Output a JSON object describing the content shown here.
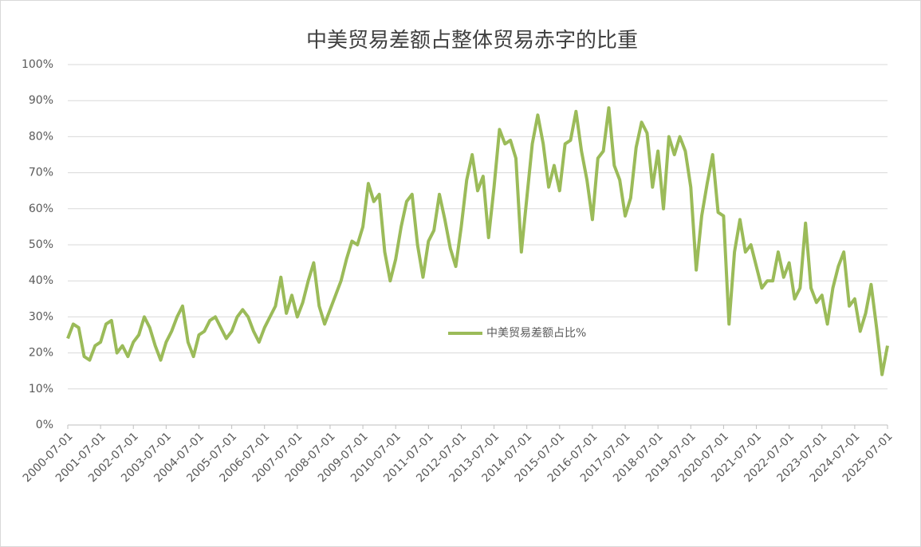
{
  "chart_data": {
    "type": "line",
    "title": "中美贸易差额占整体贸易赤字的比重",
    "x": [
      "2000-07-01",
      "2000-09-01",
      "2000-11-01",
      "2001-01-01",
      "2001-03-01",
      "2001-05-01",
      "2001-07-01",
      "2001-09-01",
      "2001-11-01",
      "2002-01-01",
      "2002-03-01",
      "2002-05-01",
      "2002-07-01",
      "2002-09-01",
      "2002-11-01",
      "2003-01-01",
      "2003-03-01",
      "2003-05-01",
      "2003-07-01",
      "2003-09-01",
      "2003-11-01",
      "2004-01-01",
      "2004-03-01",
      "2004-05-01",
      "2004-07-01",
      "2004-09-01",
      "2004-11-01",
      "2005-01-01",
      "2005-03-01",
      "2005-05-01",
      "2005-07-01",
      "2005-09-01",
      "2005-11-01",
      "2006-01-01",
      "2006-03-01",
      "2006-05-01",
      "2006-07-01",
      "2006-09-01",
      "2006-11-01",
      "2007-01-01",
      "2007-03-01",
      "2007-05-01",
      "2007-07-01",
      "2007-09-01",
      "2007-11-01",
      "2008-01-01",
      "2008-03-01",
      "2008-05-01",
      "2008-07-01",
      "2008-09-01",
      "2008-11-01",
      "2009-01-01",
      "2009-03-01",
      "2009-05-01",
      "2009-07-01",
      "2009-09-01",
      "2009-11-01",
      "2010-01-01",
      "2010-03-01",
      "2010-05-01",
      "2010-07-01",
      "2010-09-01",
      "2010-11-01",
      "2011-01-01",
      "2011-03-01",
      "2011-05-01",
      "2011-07-01",
      "2011-09-01",
      "2011-11-01",
      "2012-01-01",
      "2012-03-01",
      "2012-05-01",
      "2012-07-01",
      "2012-09-01",
      "2012-11-01",
      "2013-01-01",
      "2013-03-01",
      "2013-05-01",
      "2013-07-01",
      "2013-09-01",
      "2013-11-01",
      "2014-01-01",
      "2014-03-01",
      "2014-05-01",
      "2014-07-01",
      "2014-09-01",
      "2014-11-01",
      "2015-01-01",
      "2015-03-01",
      "2015-05-01",
      "2015-07-01",
      "2015-09-01",
      "2015-11-01",
      "2016-01-01",
      "2016-03-01",
      "2016-05-01",
      "2016-07-01",
      "2016-09-01",
      "2016-11-01",
      "2017-01-01",
      "2017-03-01",
      "2017-05-01",
      "2017-07-01",
      "2017-09-01",
      "2017-11-01",
      "2018-01-01",
      "2018-03-01",
      "2018-05-01",
      "2018-07-01",
      "2018-09-01",
      "2018-11-01",
      "2019-01-01",
      "2019-03-01",
      "2019-05-01",
      "2019-07-01",
      "2019-09-01",
      "2019-11-01",
      "2020-01-01",
      "2020-03-01",
      "2020-05-01",
      "2020-07-01",
      "2020-09-01",
      "2020-11-01",
      "2021-01-01",
      "2021-03-01",
      "2021-05-01",
      "2021-07-01",
      "2021-09-01",
      "2021-11-01",
      "2022-01-01",
      "2022-03-01",
      "2022-05-01",
      "2022-07-01",
      "2022-09-01",
      "2022-11-01",
      "2023-01-01",
      "2023-03-01",
      "2023-05-01",
      "2023-07-01",
      "2023-09-01",
      "2023-11-01",
      "2024-01-01",
      "2024-03-01",
      "2024-05-01",
      "2024-07-01",
      "2024-09-01",
      "2024-11-01",
      "2025-01-01",
      "2025-03-01",
      "2025-05-01",
      "2025-07-01"
    ],
    "series": [
      {
        "name": "中美贸易差额占比%",
        "color": "#9bbb59",
        "values": [
          24,
          28,
          27,
          19,
          18,
          22,
          23,
          28,
          29,
          20,
          22,
          19,
          23,
          25,
          30,
          27,
          22,
          18,
          23,
          26,
          30,
          33,
          23,
          19,
          25,
          26,
          29,
          30,
          27,
          24,
          26,
          30,
          32,
          30,
          26,
          23,
          27,
          30,
          33,
          41,
          31,
          36,
          30,
          34,
          40,
          45,
          33,
          28,
          32,
          36,
          40,
          46,
          51,
          50,
          55,
          67,
          62,
          64,
          48,
          40,
          46,
          55,
          62,
          64,
          50,
          41,
          51,
          54,
          64,
          57,
          49,
          44,
          55,
          68,
          75,
          65,
          69,
          52,
          66,
          82,
          78,
          79,
          74,
          48,
          63,
          78,
          86,
          78,
          66,
          72,
          65,
          78,
          79,
          87,
          76,
          68,
          57,
          74,
          76,
          88,
          72,
          68,
          58,
          63,
          77,
          84,
          81,
          66,
          76,
          60,
          80,
          75,
          80,
          76,
          66,
          43,
          58,
          67,
          75,
          59,
          58,
          28,
          48,
          57,
          48,
          50,
          44,
          38,
          40,
          40,
          48,
          41,
          45,
          35,
          38,
          56,
          38,
          34,
          36,
          28,
          38,
          44,
          48,
          33,
          35,
          26,
          31,
          39,
          27,
          14,
          22
        ]
      }
    ],
    "xlim": [
      "2000-07-01",
      "2025-07-01"
    ],
    "xticks": [
      "2000-07-01",
      "2001-07-01",
      "2002-07-01",
      "2003-07-01",
      "2004-07-01",
      "2005-07-01",
      "2006-07-01",
      "2007-07-01",
      "2008-07-01",
      "2009-07-01",
      "2010-07-01",
      "2011-07-01",
      "2012-07-01",
      "2013-07-01",
      "2014-07-01",
      "2015-07-01",
      "2016-07-01",
      "2017-07-01",
      "2018-07-01",
      "2019-07-01",
      "2020-07-01",
      "2021-07-01",
      "2022-07-01",
      "2023-07-01",
      "2024-07-01",
      "2025-07-01"
    ],
    "ylim": [
      0,
      100
    ],
    "yticks": [
      {
        "value": 0,
        "label": "0%"
      },
      {
        "value": 10,
        "label": "10%"
      },
      {
        "value": 20,
        "label": "20%"
      },
      {
        "value": 30,
        "label": "30%"
      },
      {
        "value": 40,
        "label": "40%"
      },
      {
        "value": 50,
        "label": "50%"
      },
      {
        "value": 60,
        "label": "60%"
      },
      {
        "value": 70,
        "label": "70%"
      },
      {
        "value": 80,
        "label": "80%"
      },
      {
        "value": 90,
        "label": "90%"
      },
      {
        "value": 100,
        "label": "100%"
      }
    ],
    "grid": true
  }
}
